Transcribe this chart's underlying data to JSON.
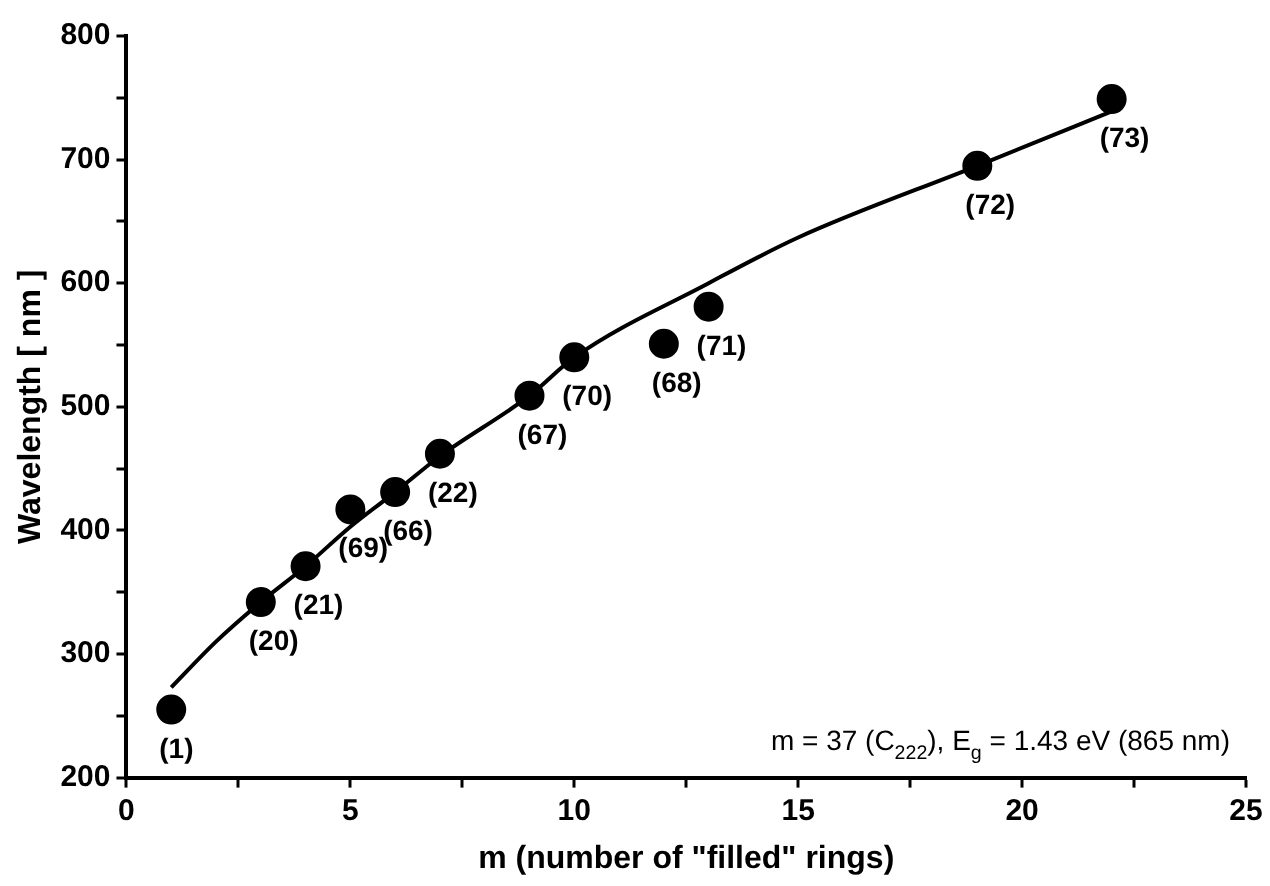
{
  "chart_data": {
    "type": "scatter",
    "xlabel": "m (number of \"filled\" rings)",
    "ylabel": "Wavelength [ nm ]",
    "xlim": [
      0,
      25
    ],
    "xticks": [
      0,
      {
        "value": 2.5,
        "label": null
      },
      5,
      {
        "value": 7.5,
        "label": null
      },
      10,
      {
        "value": 12.5,
        "label": null
      },
      15,
      {
        "value": 17.5,
        "label": null
      },
      20,
      {
        "value": 22.5,
        "label": null
      },
      25
    ],
    "ylim": [
      200,
      800
    ],
    "yticks": [
      200,
      {
        "value": 250,
        "label": null
      },
      300,
      {
        "value": 350,
        "label": null
      },
      400,
      {
        "value": 450,
        "label": null
      },
      500,
      {
        "value": 550,
        "label": null
      },
      600,
      {
        "value": 650,
        "label": null
      },
      700,
      {
        "value": 750,
        "label": null
      },
      800
    ],
    "grid": false,
    "legend": false,
    "series": [
      {
        "marker": "circle",
        "color": "#000000",
        "x": [
          1,
          3,
          4,
          5,
          6,
          7,
          9,
          10,
          12,
          13,
          19,
          22
        ],
        "values": [
          255,
          342,
          371,
          417,
          431,
          462,
          509,
          540,
          551,
          581,
          695,
          749
        ]
      },
      {
        "type": "line",
        "marker": "none",
        "color": "#000000",
        "x": [
          1,
          2,
          3,
          4,
          5,
          6,
          7,
          9,
          10,
          13,
          15,
          19,
          22
        ],
        "values": [
          273,
          310,
          342,
          371,
          403,
          431,
          460,
          509,
          540,
          600,
          637,
          695,
          739
        ]
      }
    ],
    "annotations": [
      {
        "text": "(1)",
        "x": 1,
        "y": 255
      },
      {
        "text": "(20)",
        "x": 3,
        "y": 342
      },
      {
        "text": "(21)",
        "x": 4,
        "y": 371
      },
      {
        "text": "(69)",
        "x": 5,
        "y": 417
      },
      {
        "text": "(66)",
        "x": 6,
        "y": 431
      },
      {
        "text": "(22)",
        "x": 7,
        "y": 462
      },
      {
        "text": "(67)",
        "x": 9,
        "y": 509
      },
      {
        "text": "(70)",
        "x": 10,
        "y": 540
      },
      {
        "text": "(68)",
        "x": 12,
        "y": 551
      },
      {
        "text": "(71)",
        "x": 13,
        "y": 581
      },
      {
        "text": "(72)",
        "x": 19,
        "y": 695
      },
      {
        "text": "(73)",
        "x": 22,
        "y": 749
      },
      "m = 37 (C$_{222}$), E$_{g}$ = 1.43 eV (865 nm)"
    ]
  }
}
